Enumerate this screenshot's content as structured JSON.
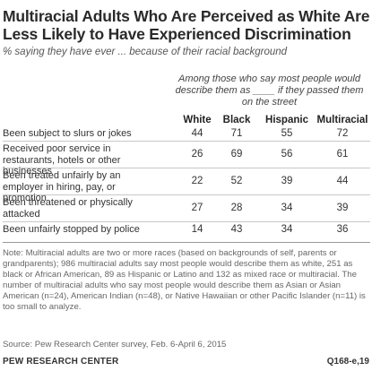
{
  "chart_data": {
    "type": "table",
    "title": "Multiracial Adults Who Are Perceived as White Are Less Likely to Have Experienced Discrimination",
    "subtitle": "% saying they have ever ... because of their racial background",
    "column_group_header": "Among those who say most people would describe them as ____ if they passed them on the street",
    "columns": [
      "White",
      "Black",
      "Hispanic",
      "Multiracial"
    ],
    "rows": [
      {
        "label": "Been subject to slurs or jokes",
        "values": [
          44,
          71,
          55,
          72
        ]
      },
      {
        "label": "Received poor service in restaurants, hotels or other businesses",
        "values": [
          26,
          69,
          56,
          61
        ]
      },
      {
        "label": "Been treated unfairly by an employer in hiring, pay, or promotion",
        "values": [
          22,
          52,
          39,
          44
        ]
      },
      {
        "label": "Been threatened or physically attacked",
        "values": [
          27,
          28,
          34,
          39
        ]
      },
      {
        "label": "Been unfairly stopped by police",
        "values": [
          14,
          43,
          34,
          36
        ]
      }
    ]
  },
  "footer": {
    "note": "Note: Multiracial adults are two or more races (based on backgrounds of self, parents or grandparents); 986 multiracial adults say most people would describe them as white, 251 as black or African American, 89 as Hispanic or Latino and 132 as mixed race or multiracial. The number of multiracial adults who say most people would describe them as Asian or Asian American (n=24), American Indian (n=48), or Native Hawaiian or other Pacific Islander (n=11) is too small to analyze.",
    "source": "Source: Pew Research Center survey, Feb. 6-April 6, 2015",
    "brand": "PEW RESEARCH CENTER",
    "question_code": "Q168-e,19"
  }
}
